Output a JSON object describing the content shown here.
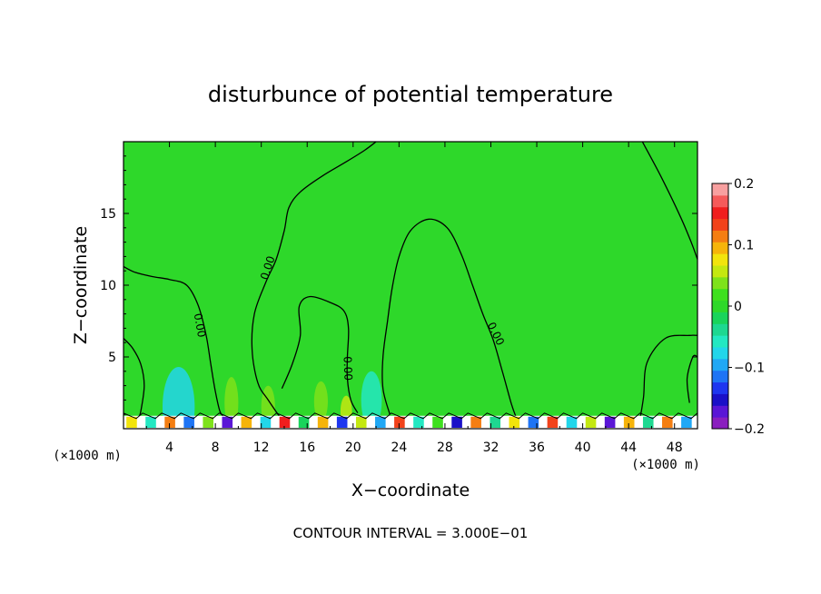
{
  "chart_data": {
    "type": "heatmap",
    "title": "disturbunce of potential temperature",
    "xlabel": "X−coordinate",
    "ylabel": "Z−coordinate",
    "x_unit": "(×1000 m)",
    "y_unit": "(×1000 m)",
    "xlim": [
      0,
      50
    ],
    "ylim": [
      0,
      20
    ],
    "x_ticks": [
      4,
      8,
      12,
      16,
      20,
      24,
      28,
      32,
      36,
      40,
      44,
      48
    ],
    "y_ticks": [
      5,
      10,
      15
    ],
    "background_value": 0,
    "contour_interval_text": "CONTOUR INTERVAL = 3.000E−01",
    "contour_label": "0.00",
    "colorbar": {
      "min": -0.2,
      "max": 0.2,
      "tick_values": [
        -0.2,
        -0.1,
        0,
        0.1,
        0.2
      ],
      "tick_labels": [
        "−0.2",
        "−0.1",
        "0",
        "0.1",
        "0.2"
      ],
      "colors": [
        "#8a1fbf",
        "#5a16d6",
        "#1a10c8",
        "#1e36f0",
        "#1e74f5",
        "#20a8f5",
        "#22d6ea",
        "#23e8c2",
        "#1ed891",
        "#19d45b",
        "#2ed82a",
        "#3ee01e",
        "#7ee21a",
        "#c4e810",
        "#f2e40c",
        "#f6b40a",
        "#f47e12",
        "#f2421a",
        "#f01e1e",
        "#f55a5a",
        "#f8a0a0"
      ]
    },
    "contours": [
      {
        "value": 0,
        "points": [
          [
            0,
            11.3
          ],
          [
            1,
            10.9
          ],
          [
            2.5,
            10.6
          ],
          [
            4,
            10.4
          ],
          [
            5.5,
            10
          ],
          [
            6.5,
            8.6
          ],
          [
            7.2,
            6.5
          ],
          [
            7.6,
            4.5
          ],
          [
            8,
            2.6
          ],
          [
            8.4,
            1.2
          ],
          [
            8.8,
            0.8
          ]
        ]
      },
      {
        "value": 0,
        "points": [
          [
            0,
            6.3
          ],
          [
            0.8,
            5.6
          ],
          [
            1.5,
            4.5
          ],
          [
            1.8,
            3
          ],
          [
            1.5,
            1.2
          ],
          [
            1.3,
            0.8
          ]
        ]
      },
      {
        "value": 0,
        "points": [
          [
            13.8,
            0.6
          ],
          [
            12.6,
            2
          ],
          [
            11.7,
            3.2
          ],
          [
            11.2,
            5.5
          ],
          [
            11.4,
            8
          ],
          [
            12.4,
            10.2
          ],
          [
            13.3,
            11.8
          ],
          [
            14,
            13.8
          ],
          [
            14.4,
            15.4
          ],
          [
            15.4,
            16.5
          ],
          [
            17.3,
            17.6
          ],
          [
            19.4,
            18.6
          ],
          [
            21,
            19.4
          ],
          [
            22,
            20
          ]
        ]
      },
      {
        "value": 0,
        "points": [
          [
            13.8,
            2.8
          ],
          [
            14.7,
            4.5
          ],
          [
            15.4,
            6.5
          ],
          [
            15.3,
            8.5
          ],
          [
            16.2,
            9.2
          ],
          [
            18,
            8.8
          ],
          [
            19.2,
            8.2
          ],
          [
            19.6,
            7
          ],
          [
            19.5,
            5
          ],
          [
            19.5,
            3.5
          ],
          [
            19.8,
            2
          ],
          [
            20.4,
            1.1
          ]
        ]
      },
      {
        "value": 0,
        "points": [
          [
            23.2,
            1
          ],
          [
            22.6,
            2.8
          ],
          [
            22.6,
            5
          ],
          [
            23,
            7.5
          ],
          [
            23.4,
            9.8
          ],
          [
            24,
            12
          ],
          [
            25,
            13.8
          ],
          [
            26.6,
            14.6
          ],
          [
            28.2,
            14
          ],
          [
            29.4,
            12.2
          ],
          [
            30.4,
            10
          ],
          [
            31.3,
            8
          ],
          [
            32.2,
            6.2
          ],
          [
            33,
            4
          ],
          [
            33.8,
            1.7
          ],
          [
            34.2,
            0.8
          ]
        ]
      },
      {
        "value": 0,
        "points": [
          [
            45.2,
            20
          ],
          [
            46.8,
            17.6
          ],
          [
            48.5,
            14.8
          ],
          [
            49.5,
            12.9
          ],
          [
            50,
            11.8
          ]
        ]
      },
      {
        "value": 0,
        "points": [
          [
            45,
            0.7
          ],
          [
            45.3,
            2.2
          ],
          [
            45.6,
            4.6
          ],
          [
            47.2,
            6.3
          ],
          [
            49.3,
            6.5
          ],
          [
            50,
            6.5
          ]
        ]
      },
      {
        "value": 0,
        "points": [
          [
            49.3,
            1.8
          ],
          [
            49.1,
            3.5
          ],
          [
            49.6,
            5
          ],
          [
            50,
            5
          ]
        ]
      }
    ],
    "contour_labels": [
      {
        "x": 6.6,
        "y": 7.2,
        "angle": 80
      },
      {
        "x": 12.6,
        "y": 11.2,
        "angle": -72
      },
      {
        "x": 19.5,
        "y": 4.2,
        "angle": 88
      },
      {
        "x": 32.4,
        "y": 6.6,
        "angle": 64
      }
    ],
    "anomaly_patches": [
      {
        "x": 4.8,
        "y": 1.5,
        "rx": 1.4,
        "ry": 2.8,
        "value": -0.07
      },
      {
        "x": 9.4,
        "y": 1.8,
        "rx": 0.6,
        "ry": 1.8,
        "value": 0.04
      },
      {
        "x": 12.6,
        "y": 1.5,
        "rx": 0.6,
        "ry": 1.5,
        "value": 0.03
      },
      {
        "x": 17.2,
        "y": 1.9,
        "rx": 0.6,
        "ry": 1.4,
        "value": 0.04
      },
      {
        "x": 19.4,
        "y": 1.2,
        "rx": 0.5,
        "ry": 1.1,
        "value": 0.05
      },
      {
        "x": 21.6,
        "y": 2,
        "rx": 0.9,
        "ry": 2,
        "value": -0.06
      }
    ],
    "surface_band": {
      "y_top": 0.9,
      "values": [
        0.08,
        -0.05,
        0.12,
        -0.12,
        0.04,
        -0.18,
        0.1,
        -0.08,
        0.15,
        -0.02,
        0.09,
        -0.14,
        0.06,
        -0.1,
        0.13,
        -0.06,
        0.02,
        -0.16,
        0.11,
        -0.04,
        0.07,
        -0.12,
        0.14,
        -0.08,
        0.05,
        -0.18,
        0.09,
        -0.03,
        0.12,
        -0.1
      ]
    }
  }
}
